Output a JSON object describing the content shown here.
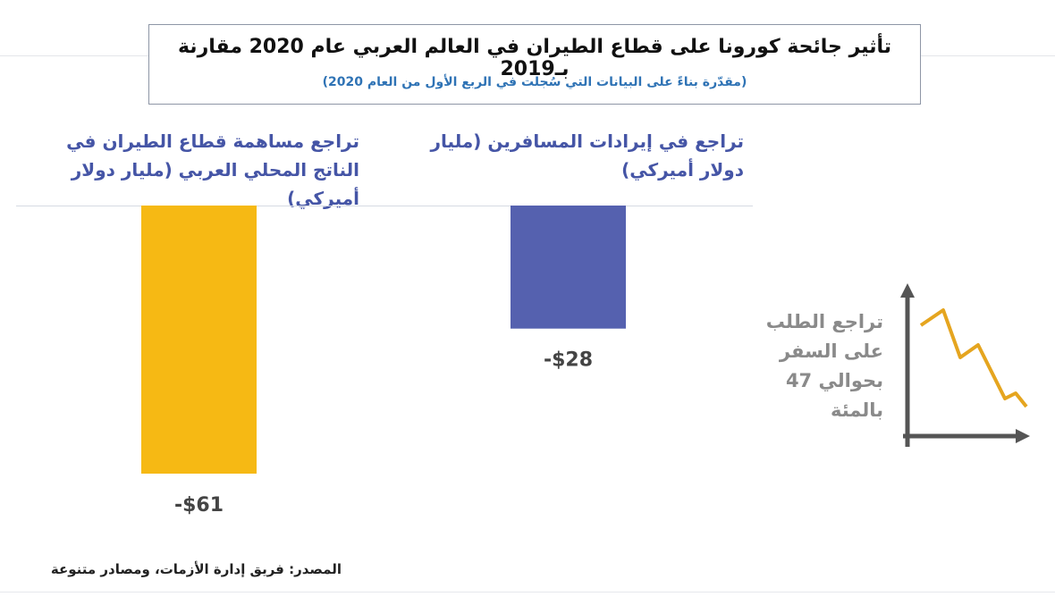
{
  "title": "تأثير جائحة كورونا على قطاع الطيران في العالم العربي عام 2020 مقارنة بـ2019",
  "subtitle": "(مقدّرة بناءً على البيانات التي سُجلت في الربع الأول من العام 2020)",
  "panels": {
    "gdp": {
      "heading": "تراجع مساهمة قطاع الطيران في الناتج المحلي العربي (مليار دولار أميركي)"
    },
    "revenue": {
      "heading": "تراجع في إيرادات المسافرين (مليار دولار أميركي)"
    }
  },
  "chart_data": {
    "type": "bar",
    "categories": [
      "تراجع مساهمة قطاع الطيران في الناتج المحلي العربي (مليار دولار أميركي)",
      "تراجع في إيرادات المسافرين (مليار دولار أميركي)"
    ],
    "values": [
      -61,
      -28
    ],
    "value_labels": [
      "-$61",
      "-$28"
    ],
    "colors": [
      "#f6b914",
      "#5561af"
    ],
    "ylim": [
      -61,
      0
    ]
  },
  "demand_note": {
    "text": "تراجع الطلب على السفر بحوالي 47 بالمئة",
    "icon": "declining-line-icon",
    "line_color": "#e5a51f",
    "axis_color": "#555555"
  },
  "source": "المصدر: فريق إدارة الأزمات، ومصادر متنوعة"
}
